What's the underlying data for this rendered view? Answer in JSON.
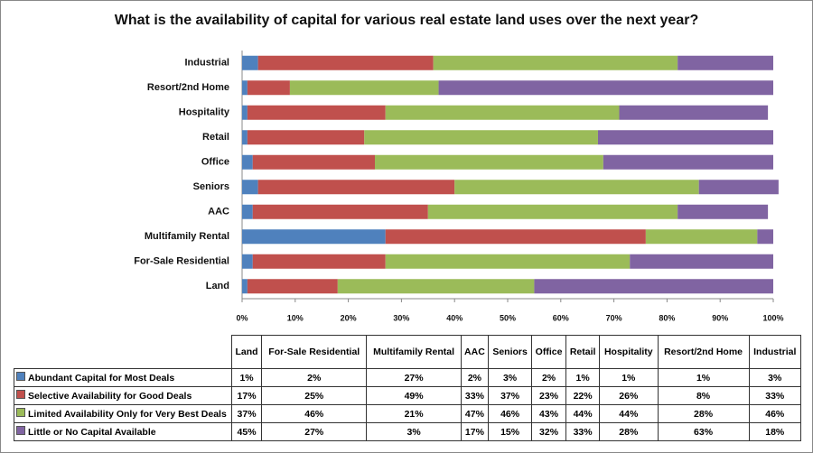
{
  "chart_data": {
    "type": "stacked-bar-horizontal",
    "title": "What is the availability of capital for various real estate land uses over the next year?",
    "categories": [
      "Land",
      "For-Sale Residential",
      "Multifamily Rental",
      "AAC",
      "Seniors",
      "Office",
      "Retail",
      "Hospitality",
      "Resort/2nd Home",
      "Industrial"
    ],
    "series": [
      {
        "name": "Abundant Capital for Most Deals",
        "color": "#4f81bd",
        "values": [
          1,
          2,
          27,
          2,
          3,
          2,
          1,
          1,
          1,
          3
        ],
        "value_labels": [
          "1%",
          "2%",
          "27%",
          "2%",
          "3%",
          "2%",
          "1%",
          "1%",
          "1%",
          "3%"
        ]
      },
      {
        "name": "Selective Availability for Good Deals",
        "color": "#c0504d",
        "values": [
          17,
          25,
          49,
          33,
          37,
          23,
          22,
          26,
          8,
          33
        ],
        "value_labels": [
          "17%",
          "25%",
          "49%",
          "33%",
          "37%",
          "23%",
          "22%",
          "26%",
          "8%",
          "33%"
        ]
      },
      {
        "name": "Limited Availability Only for Very Best Deals",
        "color": "#9bbb59",
        "values": [
          37,
          46,
          21,
          47,
          46,
          43,
          44,
          44,
          28,
          46
        ],
        "value_labels": [
          "37%",
          "46%",
          "21%",
          "47%",
          "46%",
          "43%",
          "44%",
          "44%",
          "28%",
          "46%"
        ]
      },
      {
        "name": "Little or No Capital Available",
        "color": "#8064a2",
        "values": [
          45,
          27,
          3,
          17,
          15,
          32,
          33,
          28,
          63,
          18
        ],
        "value_labels": [
          "45%",
          "27%",
          "3%",
          "17%",
          "15%",
          "32%",
          "33%",
          "28%",
          "63%",
          "18%"
        ]
      }
    ],
    "xlim": [
      0,
      100
    ],
    "xticks": [
      {
        "value": 0,
        "label": "0%"
      },
      {
        "value": 10,
        "label": "10%"
      },
      {
        "value": 20,
        "label": "20%"
      },
      {
        "value": 30,
        "label": "30%"
      },
      {
        "value": 40,
        "label": "40%"
      },
      {
        "value": 50,
        "label": "50%"
      },
      {
        "value": 60,
        "label": "60%"
      },
      {
        "value": 70,
        "label": "70%"
      },
      {
        "value": 80,
        "label": "80%"
      },
      {
        "value": 90,
        "label": "90%"
      },
      {
        "value": 100,
        "label": "100%"
      }
    ]
  }
}
